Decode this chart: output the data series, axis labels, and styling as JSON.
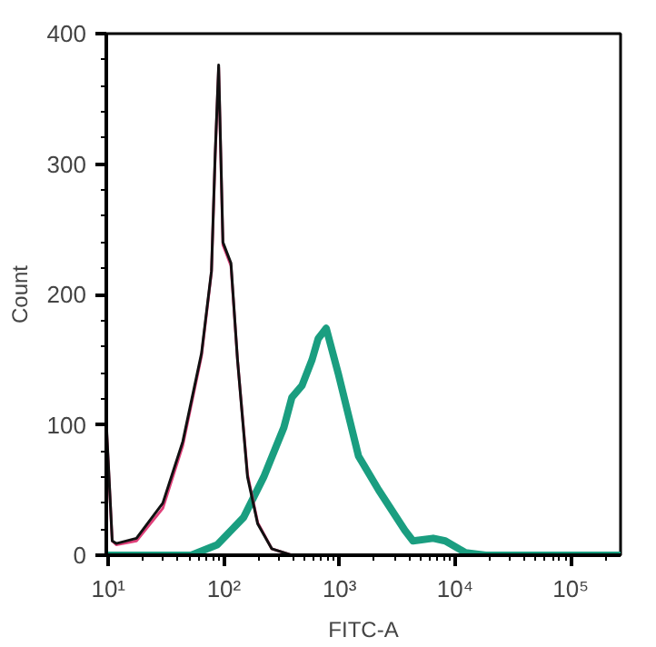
{
  "chart_data": {
    "type": "line",
    "xlabel": "FITC-A",
    "ylabel": "Count",
    "log": "x",
    "grid": false,
    "marker": "none",
    "line_style": "solid",
    "xlim": [
      9.6,
      270000
    ],
    "ylim": [
      0,
      400
    ],
    "xticks": [
      {
        "value": 10,
        "label": "10¹"
      },
      {
        "value": 100,
        "label": "10²"
      },
      {
        "value": 1000,
        "label": "10³"
      },
      {
        "value": 10000,
        "label": "10⁴"
      },
      {
        "value": 100000,
        "label": "10⁵"
      }
    ],
    "yticks": [
      0,
      100,
      200,
      300,
      400
    ],
    "series": [
      {
        "color": "#1a9e80",
        "x": [
          9.6,
          52,
          87.5,
          148,
          221,
          330,
          387,
          473,
          579,
          653,
          767,
          977,
          1460,
          2180,
          3680,
          4320,
          6460,
          8220,
          12300,
          18400,
          270000
        ],
        "values": [
          0,
          0,
          8,
          29,
          60,
          98,
          121,
          130,
          150,
          166,
          174,
          139,
          76,
          50,
          19,
          11,
          13,
          11,
          2,
          0,
          0
        ]
      },
      {
        "color": "#e0407a",
        "x": [
          9.6,
          10.8,
          11.7,
          17.5,
          29.6,
          44,
          64,
          78,
          84,
          90,
          98,
          115,
          131,
          160,
          196,
          259,
          387
        ],
        "values": [
          100,
          11,
          8,
          11,
          36,
          84,
          153,
          217,
          306,
          374,
          238,
          222,
          150,
          62,
          25,
          5,
          0
        ]
      },
      {
        "color": "#111111",
        "x": [
          9.6,
          10.8,
          11.7,
          17.5,
          29.6,
          44,
          64,
          78,
          84,
          90,
          98,
          115,
          131,
          160,
          196,
          259,
          387
        ],
        "values": [
          102,
          11,
          9,
          13,
          40,
          87,
          155,
          218,
          308,
          376,
          240,
          224,
          150,
          60,
          24,
          5,
          0
        ]
      }
    ]
  }
}
